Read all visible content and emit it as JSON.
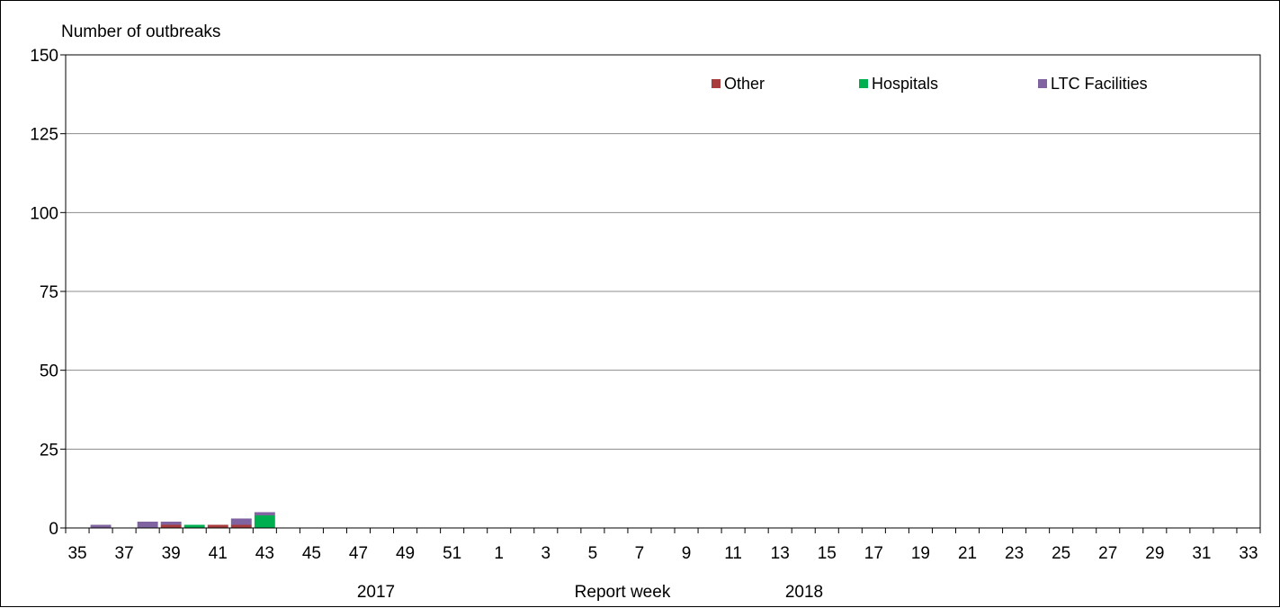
{
  "chart_data": {
    "type": "bar",
    "stacked": true,
    "ylabel": "Number of outbreaks",
    "xlabel": "Report week",
    "year_labels": [
      "2017",
      "2018"
    ],
    "ylim": [
      0,
      150
    ],
    "yticks": [
      0,
      25,
      50,
      75,
      100,
      125,
      150
    ],
    "grid": true,
    "legend_position": "top-right",
    "categories": [
      "35",
      "36",
      "37",
      "38",
      "39",
      "40",
      "41",
      "42",
      "43",
      "44",
      "45",
      "46",
      "47",
      "48",
      "49",
      "50",
      "51",
      "52",
      "1",
      "2",
      "3",
      "4",
      "5",
      "6",
      "7",
      "8",
      "9",
      "10",
      "11",
      "12",
      "13",
      "14",
      "15",
      "16",
      "17",
      "18",
      "19",
      "20",
      "21",
      "22",
      "23",
      "24",
      "25",
      "26",
      "27",
      "28",
      "29",
      "30",
      "31",
      "32",
      "33"
    ],
    "tick_labels": [
      "35",
      "37",
      "39",
      "41",
      "43",
      "45",
      "47",
      "49",
      "51",
      "1",
      "3",
      "5",
      "7",
      "9",
      "11",
      "13",
      "15",
      "17",
      "19",
      "21",
      "23",
      "25",
      "27",
      "29",
      "31",
      "33"
    ],
    "series": [
      {
        "name": "Other",
        "color": "#a83b3b",
        "values": [
          0,
          0,
          0,
          0,
          1,
          0,
          1,
          1,
          0,
          0,
          0,
          0,
          0,
          0,
          0,
          0,
          0,
          0,
          0,
          0,
          0,
          0,
          0,
          0,
          0,
          0,
          0,
          0,
          0,
          0,
          0,
          0,
          0,
          0,
          0,
          0,
          0,
          0,
          0,
          0,
          0,
          0,
          0,
          0,
          0,
          0,
          0,
          0,
          0,
          0,
          0
        ]
      },
      {
        "name": "Hospitals",
        "color": "#00b050",
        "values": [
          0,
          0,
          0,
          0,
          0,
          1,
          0,
          0,
          4,
          0,
          0,
          0,
          0,
          0,
          0,
          0,
          0,
          0,
          0,
          0,
          0,
          0,
          0,
          0,
          0,
          0,
          0,
          0,
          0,
          0,
          0,
          0,
          0,
          0,
          0,
          0,
          0,
          0,
          0,
          0,
          0,
          0,
          0,
          0,
          0,
          0,
          0,
          0,
          0,
          0,
          0
        ]
      },
      {
        "name": "LTC Facilities",
        "color": "#8064a2",
        "values": [
          0,
          1,
          0,
          2,
          1,
          0,
          0,
          2,
          1,
          0,
          0,
          0,
          0,
          0,
          0,
          0,
          0,
          0,
          0,
          0,
          0,
          0,
          0,
          0,
          0,
          0,
          0,
          0,
          0,
          0,
          0,
          0,
          0,
          0,
          0,
          0,
          0,
          0,
          0,
          0,
          0,
          0,
          0,
          0,
          0,
          0,
          0,
          0,
          0,
          0,
          0
        ]
      }
    ]
  }
}
